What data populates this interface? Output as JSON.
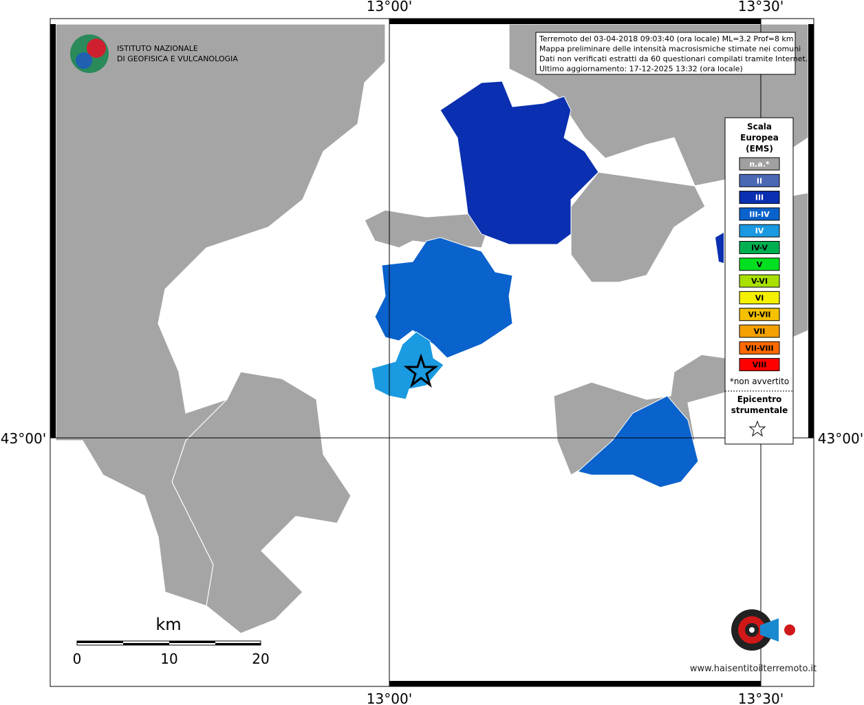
{
  "map": {
    "coords": {
      "top": [
        "13°00'",
        "13°30'"
      ],
      "bottom": [
        "13°00'",
        "13°30'"
      ],
      "left": "43°00'",
      "right": "43°00'"
    },
    "logo": {
      "line1": "ISTITUTO NAZIONALE",
      "line2": "DI GEOFISICA E VULCANOLOGIA"
    },
    "info": [
      "Terremoto del 03-04-2018 09:03:40 (ora locale) ML=3.2 Prof=8 km",
      "Mappa preliminare delle intensità macrosismiche stimate nei comuni",
      "Dati non verificati estratti da 60 questionari compilati tramite Internet.",
      "Ultimo aggiornamento: 17-12-2025 13:32 (ora locale)"
    ],
    "legend": {
      "title": [
        "Scala",
        "Europea",
        "(EMS)"
      ],
      "entries": [
        {
          "label": "n.a.*",
          "color": "#a0a0a0"
        },
        {
          "label": "II",
          "color": "#4a68b4"
        },
        {
          "label": "III",
          "color": "#0a2fb0"
        },
        {
          "label": "III-IV",
          "color": "#0a62cc"
        },
        {
          "label": "IV",
          "color": "#1a9ae0"
        },
        {
          "label": "IV-V",
          "color": "#00b050"
        },
        {
          "label": "V",
          "color": "#00e020"
        },
        {
          "label": "V-VI",
          "color": "#a8e000"
        },
        {
          "label": "VI",
          "color": "#f4f000"
        },
        {
          "label": "VI-VII",
          "color": "#f4c000"
        },
        {
          "label": "VII",
          "color": "#f4a000"
        },
        {
          "label": "VII-VIII",
          "color": "#ff6a00"
        },
        {
          "label": "VIII",
          "color": "#ff0000"
        }
      ],
      "note": "*non avvertito",
      "epicenter": [
        "Epicentro",
        "strumentale"
      ]
    },
    "scale_bar": {
      "unit": "km",
      "ticks": [
        "0",
        "10",
        "20"
      ]
    },
    "site": "www.haisentitoilterremoto.it"
  }
}
